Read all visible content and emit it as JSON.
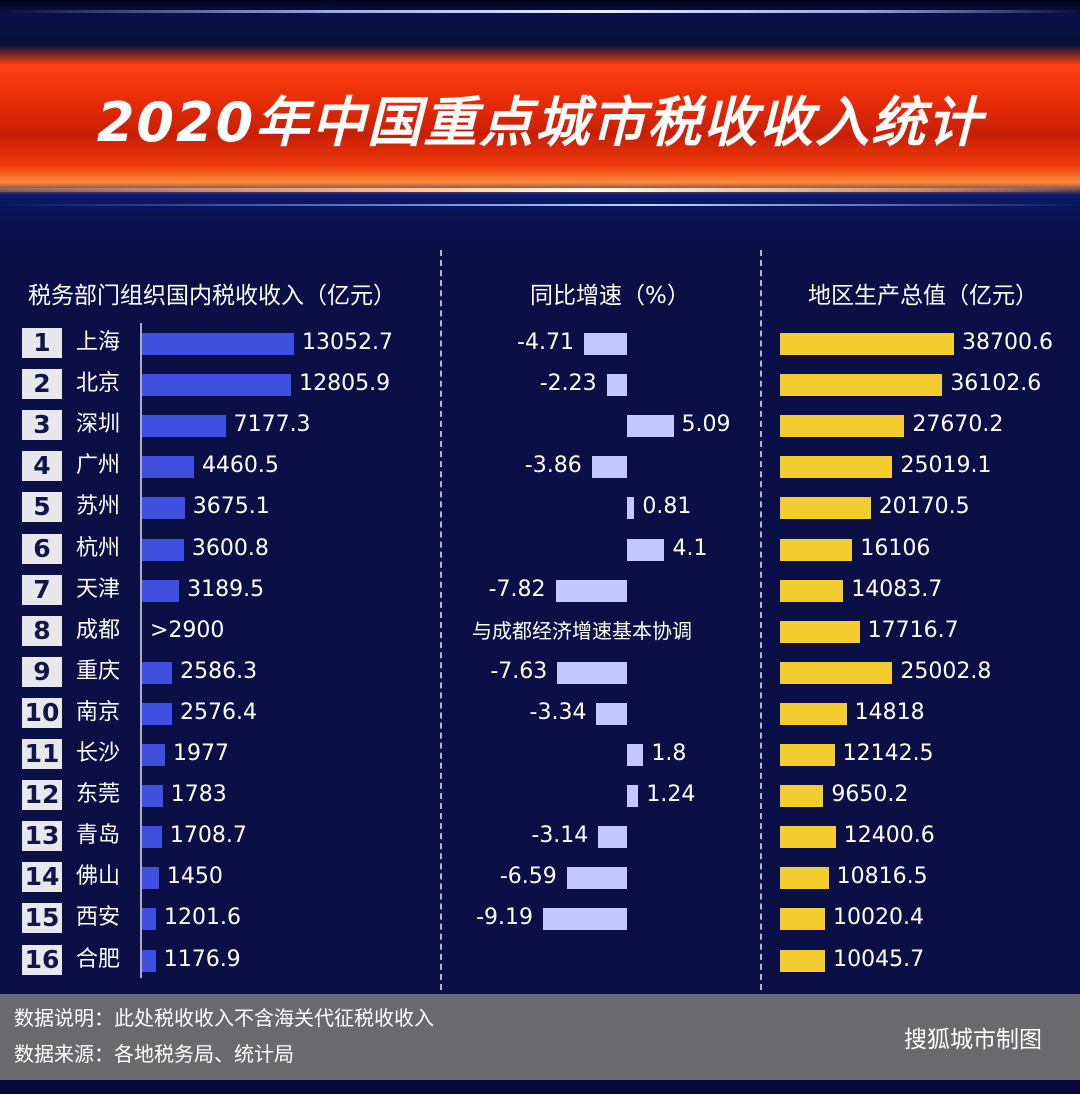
{
  "chart_data": {
    "type": "bar",
    "title": "2020年中国重点城市税收收入统计",
    "columns": {
      "tax": "税务部门组织国内税收收入（亿元）",
      "growth": "同比增速（%）",
      "gdp": "地区生产总值（亿元）"
    },
    "rows": [
      {
        "rank": "1",
        "city": "上海",
        "tax": 13052.7,
        "tax_label": "13052.7",
        "growth": -4.71,
        "growth_label": "-4.71",
        "gdp": 38700.6,
        "gdp_label": "38700.6"
      },
      {
        "rank": "2",
        "city": "北京",
        "tax": 12805.9,
        "tax_label": "12805.9",
        "growth": -2.23,
        "growth_label": "-2.23",
        "gdp": 36102.6,
        "gdp_label": "36102.6"
      },
      {
        "rank": "3",
        "city": "深圳",
        "tax": 7177.3,
        "tax_label": "7177.3",
        "growth": 5.09,
        "growth_label": "5.09",
        "gdp": 27670.2,
        "gdp_label": "27670.2"
      },
      {
        "rank": "4",
        "city": "广州",
        "tax": 4460.5,
        "tax_label": "4460.5",
        "growth": -3.86,
        "growth_label": "-3.86",
        "gdp": 25019.1,
        "gdp_label": "25019.1"
      },
      {
        "rank": "5",
        "city": "苏州",
        "tax": 3675.1,
        "tax_label": "3675.1",
        "growth": 0.81,
        "growth_label": "0.81",
        "gdp": 20170.5,
        "gdp_label": "20170.5"
      },
      {
        "rank": "6",
        "city": "杭州",
        "tax": 3600.8,
        "tax_label": "3600.8",
        "growth": 4.1,
        "growth_label": "4.1",
        "gdp": 16106,
        "gdp_label": "16106"
      },
      {
        "rank": "7",
        "city": "天津",
        "tax": 3189.5,
        "tax_label": "3189.5",
        "growth": -7.82,
        "growth_label": "-7.82",
        "gdp": 14083.7,
        "gdp_label": "14083.7"
      },
      {
        "rank": "8",
        "city": "成都",
        "tax": null,
        "tax_label": ">2900",
        "growth": null,
        "growth_label": "与成都经济增速基本协调",
        "gdp": 17716.7,
        "gdp_label": "17716.7"
      },
      {
        "rank": "9",
        "city": "重庆",
        "tax": 2586.3,
        "tax_label": "2586.3",
        "growth": -7.63,
        "growth_label": "-7.63",
        "gdp": 25002.8,
        "gdp_label": "25002.8"
      },
      {
        "rank": "10",
        "city": "南京",
        "tax": 2576.4,
        "tax_label": "2576.4",
        "growth": -3.34,
        "growth_label": "-3.34",
        "gdp": 14818,
        "gdp_label": "14818"
      },
      {
        "rank": "11",
        "city": "长沙",
        "tax": 1977,
        "tax_label": "1977",
        "growth": 1.8,
        "growth_label": "1.8",
        "gdp": 12142.5,
        "gdp_label": "12142.5"
      },
      {
        "rank": "12",
        "city": "东莞",
        "tax": 1783,
        "tax_label": "1783",
        "growth": 1.24,
        "growth_label": "1.24",
        "gdp": 9650.2,
        "gdp_label": "9650.2"
      },
      {
        "rank": "13",
        "city": "青岛",
        "tax": 1708.7,
        "tax_label": "1708.7",
        "growth": -3.14,
        "growth_label": "-3.14",
        "gdp": 12400.6,
        "gdp_label": "12400.6"
      },
      {
        "rank": "14",
        "city": "佛山",
        "tax": 1450,
        "tax_label": "1450",
        "growth": -6.59,
        "growth_label": "-6.59",
        "gdp": 10816.5,
        "gdp_label": "10816.5"
      },
      {
        "rank": "15",
        "city": "西安",
        "tax": 1201.6,
        "tax_label": "1201.6",
        "growth": -9.19,
        "growth_label": "-9.19",
        "gdp": 10020.4,
        "gdp_label": "10020.4"
      },
      {
        "rank": "16",
        "city": "合肥",
        "tax": 1176.9,
        "tax_label": "1176.9",
        "growth": null,
        "growth_label": "",
        "gdp": 10045.7,
        "gdp_label": "10045.7"
      }
    ],
    "colors": {
      "tax": "#3f4fe0",
      "growth": "#c3c9ff",
      "gdp": "#f3cd30",
      "background": "#0a0f45",
      "banner": "#e42a08"
    }
  },
  "footer": {
    "note": "数据说明：此处税收收入不含海关代征税收收入",
    "source": "数据来源：各地税务局、统计局",
    "credit": "搜狐城市制图"
  }
}
